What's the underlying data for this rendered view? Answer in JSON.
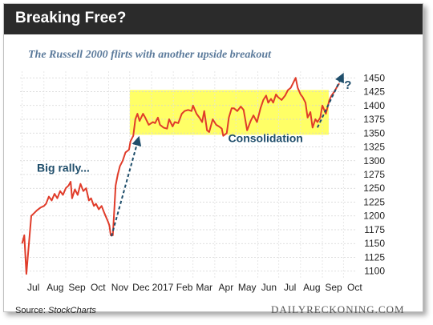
{
  "header": {
    "title": "Breaking Free?"
  },
  "subtitle": "The Russell 2000 flirts with another upside breakout",
  "source_label": "Source:",
  "source_name": "StockCharts",
  "brand": "DAILYRECKONING.COM",
  "colors": {
    "header_bg": "#2b2b2b",
    "line": "#e03c2a",
    "box": "#ffff66",
    "arrow": "#1f4e6b",
    "subtitle": "#5b7a9b",
    "annotation": "#1f4e6b"
  },
  "chart_data": {
    "type": "line",
    "series": [
      {
        "values": [
          [
            "2016-07-01",
            1150
          ],
          [
            "2016-07-04",
            1165
          ],
          [
            "2016-07-07",
            1095
          ],
          [
            "2016-07-10",
            1140
          ],
          [
            "2016-07-14",
            1200
          ],
          [
            "2016-07-18",
            1205
          ],
          [
            "2016-07-22",
            1210
          ],
          [
            "2016-07-27",
            1215
          ],
          [
            "2016-08-01",
            1218
          ],
          [
            "2016-08-04",
            1222
          ],
          [
            "2016-08-08",
            1235
          ],
          [
            "2016-08-12",
            1228
          ],
          [
            "2016-08-16",
            1240
          ],
          [
            "2016-08-20",
            1232
          ],
          [
            "2016-08-24",
            1245
          ],
          [
            "2016-08-28",
            1238
          ],
          [
            "2016-09-01",
            1250
          ],
          [
            "2016-09-05",
            1255
          ],
          [
            "2016-09-08",
            1262
          ],
          [
            "2016-09-10",
            1232
          ],
          [
            "2016-09-14",
            1248
          ],
          [
            "2016-09-18",
            1238
          ],
          [
            "2016-09-22",
            1258
          ],
          [
            "2016-09-26",
            1245
          ],
          [
            "2016-09-30",
            1250
          ],
          [
            "2016-10-04",
            1228
          ],
          [
            "2016-10-07",
            1232
          ],
          [
            "2016-10-11",
            1218
          ],
          [
            "2016-10-14",
            1222
          ],
          [
            "2016-10-18",
            1212
          ],
          [
            "2016-10-22",
            1218
          ],
          [
            "2016-10-26",
            1205
          ],
          [
            "2016-10-31",
            1190
          ],
          [
            "2016-11-02",
            1183
          ],
          [
            "2016-11-04",
            1165
          ],
          [
            "2016-11-07",
            1165
          ],
          [
            "2016-11-09",
            1210
          ],
          [
            "2016-11-11",
            1255
          ],
          [
            "2016-11-14",
            1275
          ],
          [
            "2016-11-17",
            1290
          ],
          [
            "2016-11-21",
            1300
          ],
          [
            "2016-11-25",
            1315
          ],
          [
            "2016-11-30",
            1320
          ],
          [
            "2016-12-02",
            1335
          ],
          [
            "2016-12-06",
            1345
          ],
          [
            "2016-12-09",
            1375
          ],
          [
            "2016-12-12",
            1385
          ],
          [
            "2016-12-15",
            1372
          ],
          [
            "2016-12-20",
            1385
          ],
          [
            "2016-12-23",
            1378
          ],
          [
            "2016-12-28",
            1365
          ],
          [
            "2017-01-03",
            1370
          ],
          [
            "2017-01-06",
            1368
          ],
          [
            "2017-01-10",
            1378
          ],
          [
            "2017-01-13",
            1365
          ],
          [
            "2017-01-18",
            1360
          ],
          [
            "2017-01-23",
            1358
          ],
          [
            "2017-01-26",
            1375
          ],
          [
            "2017-01-31",
            1362
          ],
          [
            "2017-02-03",
            1370
          ],
          [
            "2017-02-08",
            1368
          ],
          [
            "2017-02-13",
            1385
          ],
          [
            "2017-02-17",
            1390
          ],
          [
            "2017-02-22",
            1392
          ],
          [
            "2017-02-27",
            1390
          ],
          [
            "2017-03-01",
            1400
          ],
          [
            "2017-03-06",
            1385
          ],
          [
            "2017-03-10",
            1378
          ],
          [
            "2017-03-14",
            1370
          ],
          [
            "2017-03-17",
            1390
          ],
          [
            "2017-03-21",
            1355
          ],
          [
            "2017-03-24",
            1352
          ],
          [
            "2017-03-29",
            1375
          ],
          [
            "2017-04-03",
            1365
          ],
          [
            "2017-04-07",
            1362
          ],
          [
            "2017-04-11",
            1358
          ],
          [
            "2017-04-13",
            1345
          ],
          [
            "2017-04-18",
            1350
          ],
          [
            "2017-04-21",
            1378
          ],
          [
            "2017-04-25",
            1395
          ],
          [
            "2017-04-28",
            1395
          ],
          [
            "2017-05-03",
            1390
          ],
          [
            "2017-05-08",
            1398
          ],
          [
            "2017-05-12",
            1392
          ],
          [
            "2017-05-17",
            1355
          ],
          [
            "2017-05-22",
            1372
          ],
          [
            "2017-05-26",
            1382
          ],
          [
            "2017-05-31",
            1370
          ],
          [
            "2017-06-05",
            1395
          ],
          [
            "2017-06-09",
            1410
          ],
          [
            "2017-06-13",
            1418
          ],
          [
            "2017-06-16",
            1405
          ],
          [
            "2017-06-20",
            1412
          ],
          [
            "2017-06-23",
            1405
          ],
          [
            "2017-06-27",
            1420
          ],
          [
            "2017-06-30",
            1415
          ],
          [
            "2017-07-05",
            1410
          ],
          [
            "2017-07-10",
            1418
          ],
          [
            "2017-07-14",
            1428
          ],
          [
            "2017-07-18",
            1432
          ],
          [
            "2017-07-25",
            1450
          ],
          [
            "2017-07-28",
            1432
          ],
          [
            "2017-08-01",
            1420
          ],
          [
            "2017-08-04",
            1415
          ],
          [
            "2017-08-08",
            1405
          ],
          [
            "2017-08-11",
            1378
          ],
          [
            "2017-08-15",
            1388
          ],
          [
            "2017-08-18",
            1360
          ],
          [
            "2017-08-22",
            1375
          ],
          [
            "2017-08-25",
            1370
          ],
          [
            "2017-08-29",
            1378
          ],
          [
            "2017-09-01",
            1400
          ],
          [
            "2017-09-06",
            1385
          ],
          [
            "2017-09-11",
            1410
          ],
          [
            "2017-09-14",
            1418
          ],
          [
            "2017-09-18",
            1425
          ],
          [
            "2017-09-21",
            1432
          ],
          [
            "2017-09-25",
            1440
          ]
        ]
      }
    ],
    "y_ticks": [
      1100,
      1125,
      1150,
      1175,
      1200,
      1225,
      1250,
      1275,
      1300,
      1325,
      1350,
      1375,
      1400,
      1425,
      1450
    ],
    "ylim": [
      1088,
      1462
    ],
    "x_ticks": [
      {
        "label": "Jul",
        "date": "2016-07-01"
      },
      {
        "label": "Aug",
        "date": "2016-08-01"
      },
      {
        "label": "Sep",
        "date": "2016-09-01"
      },
      {
        "label": "Oct",
        "date": "2016-10-01"
      },
      {
        "label": "Nov",
        "date": "2016-11-01"
      },
      {
        "label": "Dec",
        "date": "2016-12-01"
      },
      {
        "label": "2017",
        "date": "2017-01-01"
      },
      {
        "label": "Feb",
        "date": "2017-02-01"
      },
      {
        "label": "Mar",
        "date": "2017-03-01"
      },
      {
        "label": "Apr",
        "date": "2017-04-01"
      },
      {
        "label": "May",
        "date": "2017-05-01"
      },
      {
        "label": "Jun",
        "date": "2017-06-01"
      },
      {
        "label": "Jul",
        "date": "2017-07-01"
      },
      {
        "label": "Aug",
        "date": "2017-08-01"
      },
      {
        "label": "Sep",
        "date": "2017-09-01"
      },
      {
        "label": "Oct",
        "date": "2017-10-01"
      }
    ],
    "xlim": [
      "2016-06-28",
      "2017-10-20"
    ],
    "grid": true,
    "consolidation_box": {
      "x_start": "2016-12-01",
      "x_end": "2017-09-10",
      "y_low": 1347,
      "y_high": 1428
    },
    "annotations": [
      {
        "text": "Big rally...",
        "x": "2016-07-22",
        "y": 1280
      },
      {
        "text": "Consolidation",
        "x": "2017-04-20",
        "y": 1334
      },
      {
        "text": "?",
        "x": "2017-10-02",
        "y": 1430
      }
    ],
    "arrows": [
      {
        "from_x": "2016-11-05",
        "from_y": 1163,
        "to_x": "2016-12-13",
        "to_y": 1338
      },
      {
        "from_x": "2017-08-25",
        "from_y": 1360,
        "to_x": "2017-09-29",
        "to_y": 1453
      }
    ]
  }
}
